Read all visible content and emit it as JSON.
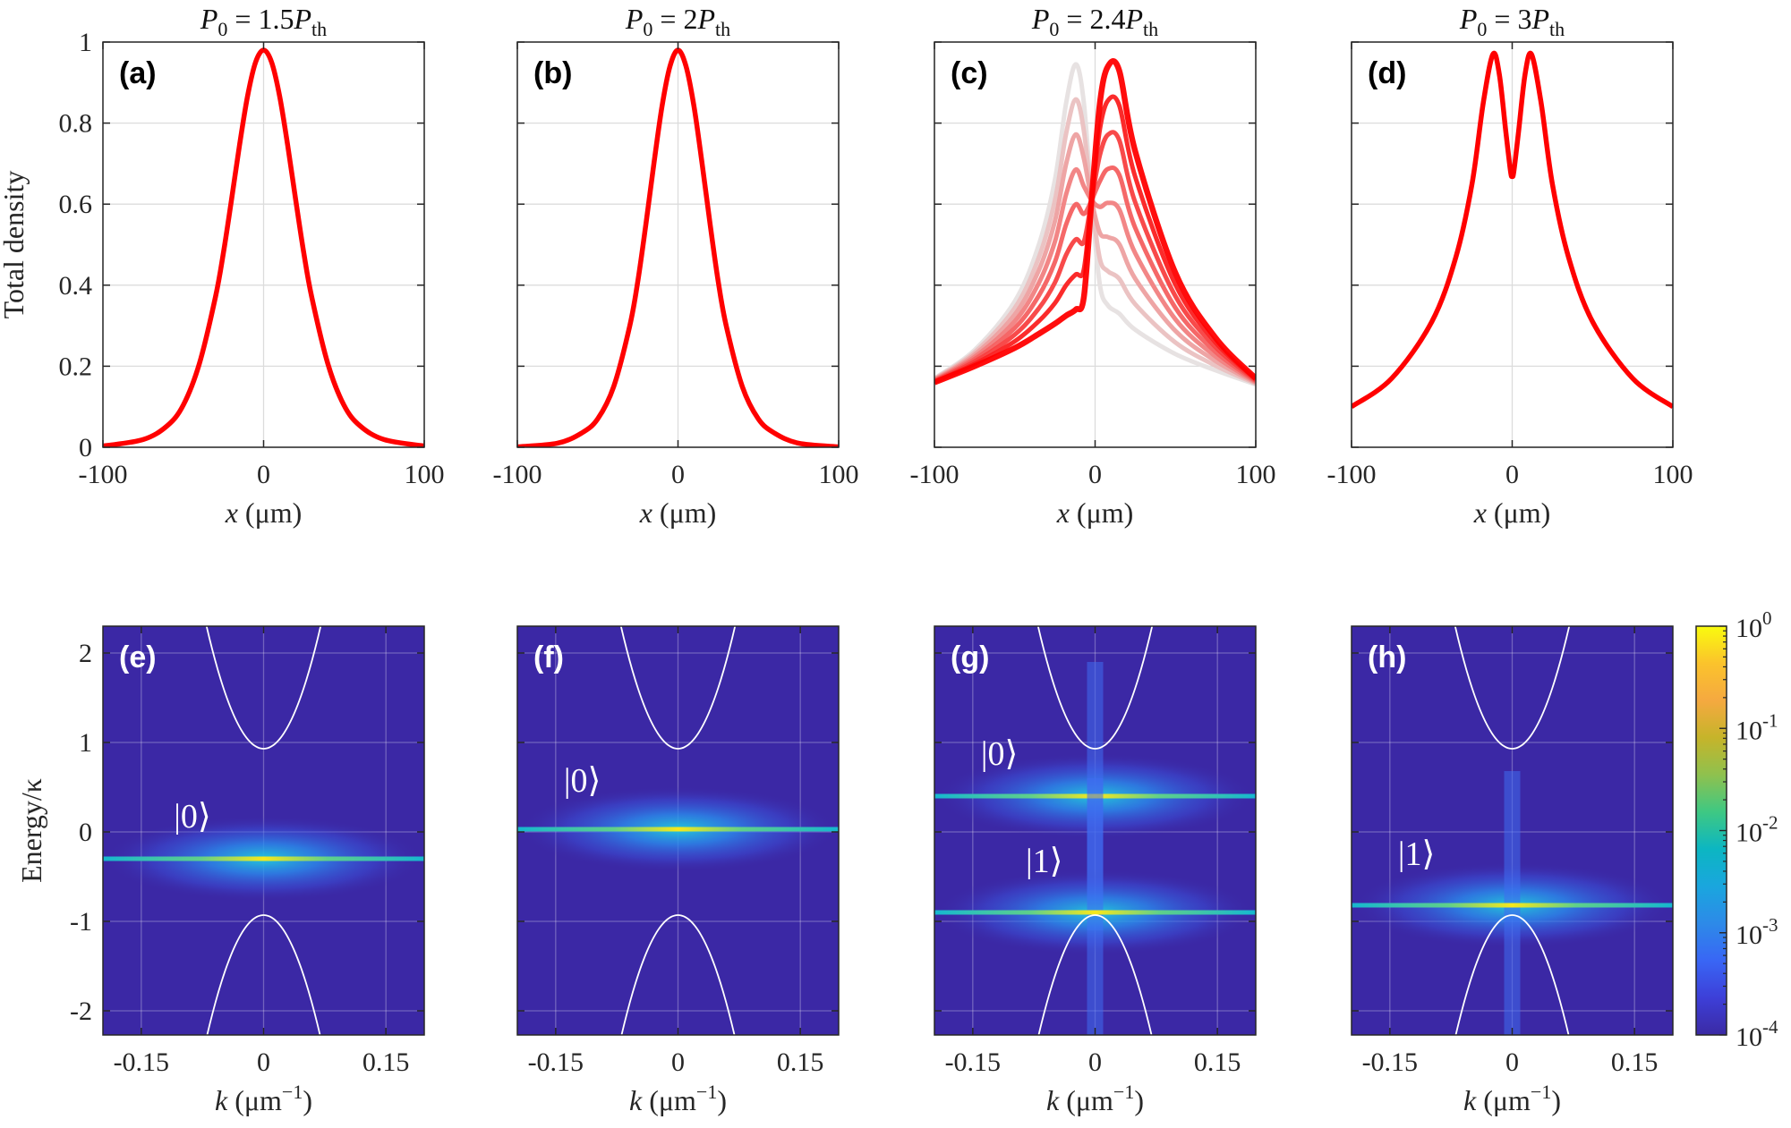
{
  "chart_data": [
    {
      "type": "line",
      "panel": "(a)",
      "title": {
        "lhs": "P",
        "lhs_sub": "0",
        "eq": " = 1.5",
        "rhs": "P",
        "rhs_sub": "th"
      },
      "xlabel": {
        "var": "x",
        "unit": " (μm)"
      },
      "ylabel": "Total density",
      "xlim": [
        -100,
        100
      ],
      "ylim": [
        0,
        1
      ],
      "xticks": [
        -100,
        0,
        100
      ],
      "xtick_labels": [
        "-100",
        "0",
        "100"
      ],
      "yticks": [
        0,
        0.2,
        0.4,
        0.6,
        0.8,
        1
      ],
      "ytick_labels": [
        "0",
        "0.2",
        "0.4",
        "0.6",
        "0.8",
        "1"
      ],
      "grid": true,
      "series": [
        {
          "name": "density",
          "color": "#ff0000",
          "points": [
            [
              -100,
              0.003
            ],
            [
              -75,
              0.019
            ],
            [
              -60,
              0.053
            ],
            [
              -50,
              0.104
            ],
            [
              -40,
              0.206
            ],
            [
              -30,
              0.37
            ],
            [
              -25,
              0.48
            ],
            [
              -20,
              0.61
            ],
            [
              -15,
              0.745
            ],
            [
              -10,
              0.866
            ],
            [
              -5,
              0.95
            ],
            [
              0,
              0.98
            ],
            [
              5,
              0.95
            ],
            [
              10,
              0.866
            ],
            [
              15,
              0.745
            ],
            [
              20,
              0.61
            ],
            [
              25,
              0.48
            ],
            [
              30,
              0.37
            ],
            [
              40,
              0.206
            ],
            [
              50,
              0.104
            ],
            [
              60,
              0.053
            ],
            [
              75,
              0.019
            ],
            [
              100,
              0.003
            ]
          ]
        }
      ]
    },
    {
      "type": "line",
      "panel": "(b)",
      "title": {
        "lhs": "P",
        "lhs_sub": "0",
        "eq": " = 2",
        "rhs": "P",
        "rhs_sub": "th"
      },
      "xlabel": {
        "var": "x",
        "unit": " (μm)"
      },
      "xlim": [
        -100,
        100
      ],
      "ylim": [
        0,
        1
      ],
      "xticks": [
        -100,
        0,
        100
      ],
      "xtick_labels": [
        "-100",
        "0",
        "100"
      ],
      "yticks": [
        0,
        0.2,
        0.4,
        0.6,
        0.8,
        1
      ],
      "grid": true,
      "series": [
        {
          "name": "density",
          "color": "#ff0000",
          "points": [
            [
              -100,
              0.001
            ],
            [
              -75,
              0.01
            ],
            [
              -60,
              0.035
            ],
            [
              -50,
              0.07
            ],
            [
              -40,
              0.15
            ],
            [
              -30,
              0.3
            ],
            [
              -25,
              0.41
            ],
            [
              -20,
              0.55
            ],
            [
              -15,
              0.7
            ],
            [
              -10,
              0.84
            ],
            [
              -5,
              0.94
            ],
            [
              0,
              0.98
            ],
            [
              5,
              0.94
            ],
            [
              10,
              0.84
            ],
            [
              15,
              0.7
            ],
            [
              20,
              0.55
            ],
            [
              25,
              0.41
            ],
            [
              30,
              0.3
            ],
            [
              40,
              0.15
            ],
            [
              50,
              0.07
            ],
            [
              60,
              0.035
            ],
            [
              75,
              0.01
            ],
            [
              100,
              0.001
            ]
          ]
        }
      ]
    },
    {
      "type": "line",
      "panel": "(c)",
      "title": {
        "lhs": "P",
        "lhs_sub": "0",
        "eq": " = 2.4",
        "rhs": "P",
        "rhs_sub": "th"
      },
      "xlabel": {
        "var": "x",
        "unit": " (μm)"
      },
      "xlim": [
        -100,
        100
      ],
      "ylim": [
        0,
        1
      ],
      "xticks": [
        -100,
        0,
        100
      ],
      "xtick_labels": [
        "-100",
        "0",
        "100"
      ],
      "yticks": [
        0,
        0.2,
        0.4,
        0.6,
        0.8,
        1
      ],
      "grid": true,
      "start_curve": {
        "color": "#e6e0e0",
        "points": [
          [
            -100,
            0.17
          ],
          [
            -75,
            0.24
          ],
          [
            -50,
            0.36
          ],
          [
            -35,
            0.5
          ],
          [
            -25,
            0.66
          ],
          [
            -18,
            0.85
          ],
          [
            -12,
            0.945
          ],
          [
            -7,
            0.85
          ],
          [
            -2,
            0.6
          ],
          [
            3,
            0.4
          ],
          [
            8,
            0.35
          ],
          [
            15,
            0.33
          ],
          [
            25,
            0.29
          ],
          [
            50,
            0.23
          ],
          [
            75,
            0.19
          ],
          [
            100,
            0.155
          ]
        ]
      },
      "final_curve": {
        "color": "#ff0000",
        "points": [
          [
            -100,
            0.16
          ],
          [
            -75,
            0.2
          ],
          [
            -50,
            0.245
          ],
          [
            -35,
            0.28
          ],
          [
            -25,
            0.305
          ],
          [
            -18,
            0.325
          ],
          [
            -12,
            0.34
          ],
          [
            -7,
            0.37
          ],
          [
            -2,
            0.62
          ],
          [
            3,
            0.85
          ],
          [
            8,
            0.94
          ],
          [
            15,
            0.93
          ],
          [
            25,
            0.73
          ],
          [
            50,
            0.43
          ],
          [
            75,
            0.27
          ],
          [
            100,
            0.17
          ]
        ]
      },
      "blend_fractions": [
        0,
        0.143,
        0.286,
        0.429,
        0.571,
        0.714,
        0.857,
        1
      ]
    },
    {
      "type": "line",
      "panel": "(d)",
      "title": {
        "lhs": "P",
        "lhs_sub": "0",
        "eq": " = 3",
        "rhs": "P",
        "rhs_sub": "th"
      },
      "xlabel": {
        "var": "x",
        "unit": " (μm)"
      },
      "xlim": [
        -100,
        100
      ],
      "ylim": [
        0,
        1
      ],
      "xticks": [
        -100,
        0,
        100
      ],
      "xtick_labels": [
        "-100",
        "0",
        "100"
      ],
      "yticks": [
        0,
        0.2,
        0.4,
        0.6,
        0.8,
        1
      ],
      "grid": true,
      "series": [
        {
          "name": "density",
          "color": "#ff0000",
          "points": [
            [
              -100,
              0.1
            ],
            [
              -75,
              0.17
            ],
            [
              -50,
              0.31
            ],
            [
              -35,
              0.47
            ],
            [
              -25,
              0.65
            ],
            [
              -18,
              0.85
            ],
            [
              -12,
              0.97
            ],
            [
              -8,
              0.92
            ],
            [
              -4,
              0.78
            ],
            [
              -1,
              0.68
            ],
            [
              0,
              0.67
            ],
            [
              1,
              0.68
            ],
            [
              4,
              0.78
            ],
            [
              8,
              0.92
            ],
            [
              12,
              0.97
            ],
            [
              18,
              0.85
            ],
            [
              25,
              0.65
            ],
            [
              35,
              0.47
            ],
            [
              50,
              0.31
            ],
            [
              75,
              0.17
            ],
            [
              100,
              0.1
            ]
          ]
        }
      ]
    },
    {
      "type": "heatmap",
      "panel": "(e)",
      "xlabel": {
        "var": "k",
        "unit": " (μm",
        "unit_sup": "−1",
        "close": ")"
      },
      "ylabel": "Energy/κ",
      "xlim": [
        -0.197,
        0.197
      ],
      "ylim": [
        -2.27,
        2.3
      ],
      "xticks": [
        -0.15,
        0,
        0.15
      ],
      "xtick_labels": [
        "-0.15",
        "0",
        "0.15"
      ],
      "yticks": [
        -2,
        -1,
        0,
        1,
        2
      ],
      "ytick_labels": [
        "-2",
        "-1",
        "0",
        "1",
        "2"
      ],
      "bands_vertex_energy": 0.93,
      "levels": [
        {
          "label": "|0⟩",
          "energy": -0.3,
          "streak": false
        }
      ]
    },
    {
      "type": "heatmap",
      "panel": "(f)",
      "xlabel": {
        "var": "k",
        "unit": " (μm",
        "unit_sup": "−1",
        "close": ")"
      },
      "xlim": [
        -0.197,
        0.197
      ],
      "ylim": [
        -2.27,
        2.3
      ],
      "xticks": [
        -0.15,
        0,
        0.15
      ],
      "xtick_labels": [
        "-0.15",
        "0",
        "0.15"
      ],
      "yticks": [
        -2,
        -1,
        0,
        1,
        2
      ],
      "bands_vertex_energy": 0.93,
      "levels": [
        {
          "label": "|0⟩",
          "energy": 0.03,
          "streak": false
        }
      ]
    },
    {
      "type": "heatmap",
      "panel": "(g)",
      "xlabel": {
        "var": "k",
        "unit": " (μm",
        "unit_sup": "−1",
        "close": ")"
      },
      "xlim": [
        -0.197,
        0.197
      ],
      "ylim": [
        -2.27,
        2.3
      ],
      "xticks": [
        -0.15,
        0,
        0.15
      ],
      "xtick_labels": [
        "-0.15",
        "0",
        "0.15"
      ],
      "yticks": [
        -2,
        -1,
        0,
        1,
        2
      ],
      "bands_vertex_energy": 0.93,
      "levels": [
        {
          "label": "|0⟩",
          "energy": 0.4,
          "streak": true
        },
        {
          "label": "|1⟩",
          "energy": -0.9,
          "streak": true
        }
      ]
    },
    {
      "type": "heatmap",
      "panel": "(h)",
      "xlabel": {
        "var": "k",
        "unit": " (μm",
        "unit_sup": "−1",
        "close": ")"
      },
      "xlim": [
        -0.197,
        0.197
      ],
      "ylim": [
        -2.27,
        2.3
      ],
      "xticks": [
        -0.15,
        0,
        0.15
      ],
      "xtick_labels": [
        "-0.15",
        "0",
        "0.15"
      ],
      "yticks": [
        -2,
        -1,
        0,
        1,
        2
      ],
      "bands_vertex_energy": 0.93,
      "levels": [
        {
          "label": "|1⟩",
          "energy": -0.82,
          "streak": true
        }
      ]
    }
  ],
  "colorbar": {
    "scale": "log",
    "range": [
      0.0001,
      1
    ],
    "tick_labels": [
      {
        "base": "10",
        "exp": "0"
      },
      {
        "base": "10",
        "exp": "-1"
      },
      {
        "base": "10",
        "exp": "-2"
      },
      {
        "base": "10",
        "exp": "-3"
      },
      {
        "base": "10",
        "exp": "-4"
      }
    ],
    "colors": [
      "#f9fb0e",
      "#fbc32c",
      "#f5a940",
      "#c6b42a",
      "#8fc14e",
      "#3ec883",
      "#0cb6c2",
      "#1aa6de",
      "#2d8ae8",
      "#3966f5",
      "#3d3fd8",
      "#3b2aa4"
    ]
  },
  "colors": {
    "heatmap_bg": "#3b28a5",
    "line_red": "#ff0000",
    "grid": "#dcdcdc"
  }
}
